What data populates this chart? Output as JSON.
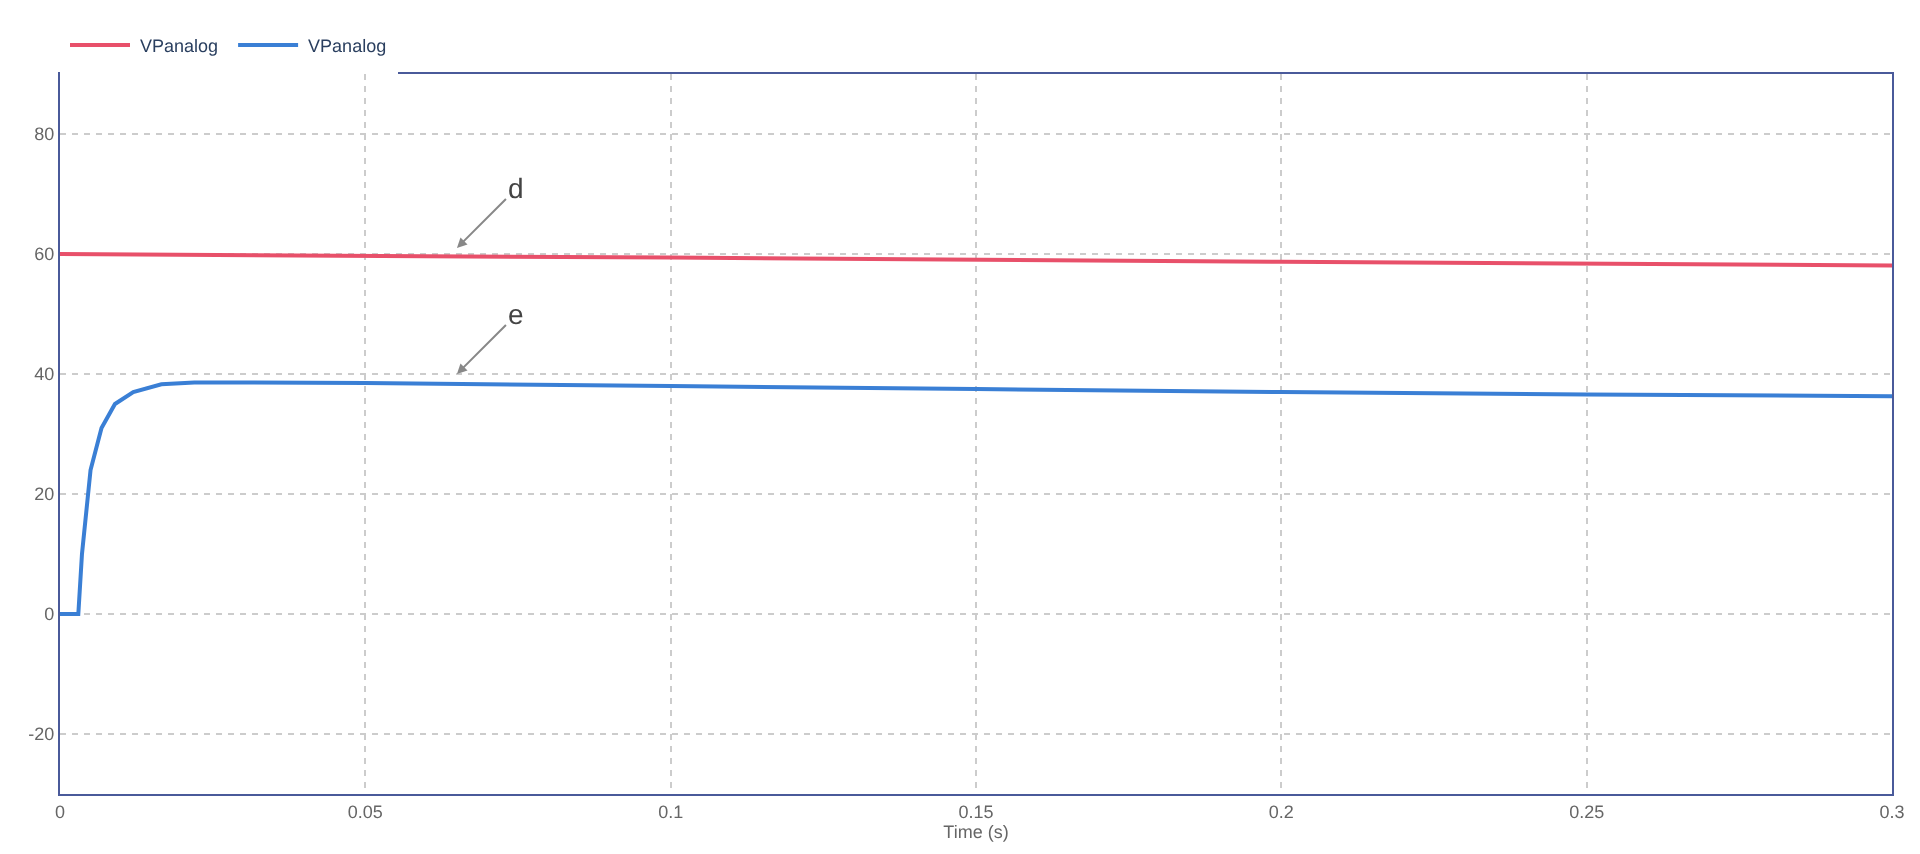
{
  "chart_data": {
    "type": "line",
    "xlabel": "Time (s)",
    "xlim": [
      0,
      0.3
    ],
    "xticks": [
      0,
      0.05,
      0.1,
      0.15,
      0.2,
      0.25,
      0.3
    ],
    "ylim": [
      -30,
      90
    ],
    "yticks": [
      -20,
      0,
      20,
      40,
      60,
      80
    ],
    "grid": true,
    "legend": "top left",
    "line_style": "solid",
    "marker": "none",
    "series": [
      {
        "name": "VPanalog",
        "color": "#e8506a",
        "x": [
          0,
          0.1,
          0.2,
          0.3
        ],
        "values": [
          60,
          59.4,
          58.7,
          58.1
        ]
      },
      {
        "name": "VPanalog",
        "color": "#3a7fd5",
        "x": [
          0,
          0.003,
          0.0036,
          0.005,
          0.0068,
          0.009,
          0.012,
          0.0166,
          0.022,
          0.03,
          0.05,
          0.1,
          0.15,
          0.2,
          0.25,
          0.3
        ],
        "values": [
          0,
          0,
          10,
          24,
          31,
          35,
          37,
          38.3,
          38.6,
          38.6,
          38.5,
          38,
          37.5,
          37,
          36.6,
          36.3
        ]
      }
    ],
    "annotations": [
      {
        "text": "d",
        "x": 0.065,
        "y": 61
      },
      {
        "text": "e",
        "x": 0.065,
        "y": 40
      }
    ]
  }
}
